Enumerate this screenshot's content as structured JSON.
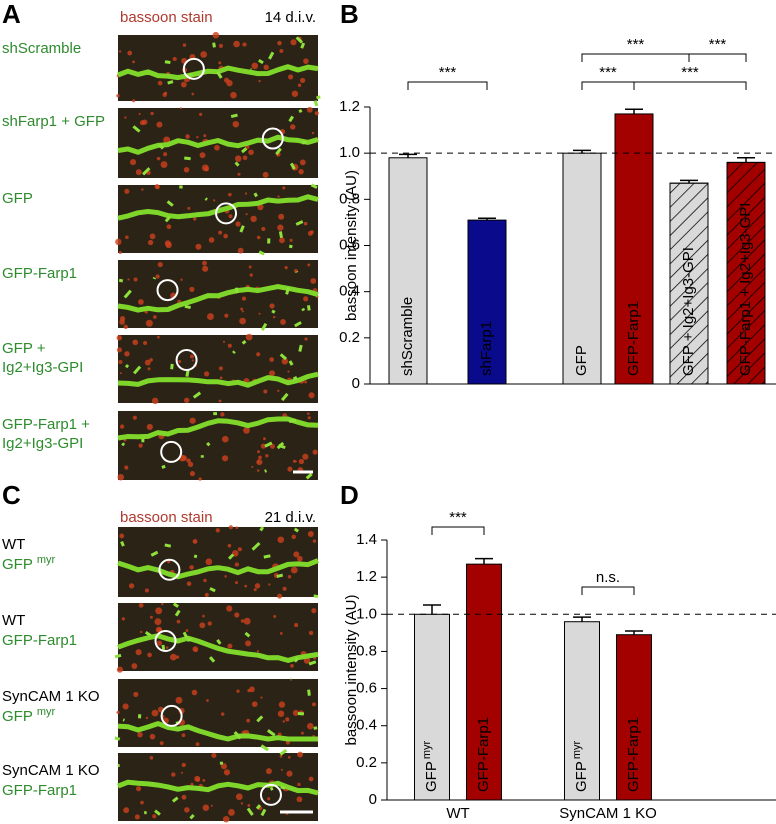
{
  "figure": {
    "panel_labels": [
      "A",
      "B",
      "C",
      "D"
    ],
    "image_panels": [
      {
        "stain": "bassoon stain",
        "age": "14 d.i.v.",
        "rows": [
          {
            "lines": [
              "shScramble"
            ]
          },
          {
            "lines": [
              "shFarp1 + GFP"
            ]
          },
          {
            "lines": [
              "GFP"
            ]
          },
          {
            "lines": [
              "GFP-Farp1"
            ]
          },
          {
            "lines": [
              "GFP +",
              "Ig2+Ig3-GPI"
            ]
          },
          {
            "lines": [
              "GFP-Farp1 +",
              "Ig2+Ig3-GPI"
            ]
          }
        ]
      },
      {
        "stain": "bassoon stain",
        "age": "21 d.i.v.",
        "rows": [
          {
            "genotype": "WT",
            "label": "GFP",
            "sup": "myr"
          },
          {
            "genotype": "WT",
            "label": "GFP-Farp1"
          },
          {
            "genotype": "SynCAM 1 KO",
            "label": "GFP",
            "sup": "myr"
          },
          {
            "genotype": "SynCAM 1 KO",
            "label": "GFP-Farp1"
          }
        ]
      }
    ]
  },
  "chart_data": [
    {
      "type": "bar",
      "y_label": "bassoon intensity (AU)",
      "categories": [
        "shScramble",
        "shFarp1",
        "GFP",
        "GFP-Farp1",
        "GFP + Ig2+Ig3-GPI",
        "GFP-Farp1 + Ig2+Ig3-GPI"
      ],
      "values": [
        0.98,
        0.71,
        1.0,
        1.17,
        0.87,
        0.96
      ],
      "errors": [
        0.015,
        0.008,
        0.012,
        0.02,
        0.012,
        0.02
      ],
      "colors": [
        "#d9d9d9",
        "#0a0a8c",
        "#d9d9d9",
        "#a30000",
        "#d9d9d9",
        "#a30000"
      ],
      "hatched": [
        false,
        false,
        false,
        false,
        true,
        true
      ],
      "ylim": [
        0,
        1.2
      ],
      "yticks": [
        0,
        0.2,
        0.4,
        0.6,
        0.8,
        {
          "value": 1,
          "label": "1.0"
        },
        1.2
      ],
      "reference_line": 1,
      "annotations": [
        "***",
        "***",
        "***",
        "***",
        "***"
      ]
    },
    {
      "type": "bar",
      "y_label": "bassoon intensity (AU)",
      "categories": [
        "GFP",
        "GFP-Farp1",
        "GFP",
        "GFP-Farp1"
      ],
      "category_superscripts": [
        "myr",
        null,
        "myr",
        null
      ],
      "groups": [
        "WT",
        "SynCAM 1 KO"
      ],
      "values": [
        1.0,
        1.27,
        0.96,
        0.89
      ],
      "errors": [
        0.05,
        0.03,
        0.025,
        0.02
      ],
      "colors": [
        "#d9d9d9",
        "#a30000",
        "#d9d9d9",
        "#a30000"
      ],
      "hatched": [
        false,
        false,
        false,
        false
      ],
      "ylim": [
        0,
        1.4
      ],
      "yticks": [
        0,
        0.2,
        0.4,
        0.6,
        0.8,
        {
          "value": 1,
          "label": "1.0"
        },
        1.2,
        1.4
      ],
      "reference_line": 1,
      "annotations": [
        "***",
        "n.s."
      ]
    }
  ]
}
